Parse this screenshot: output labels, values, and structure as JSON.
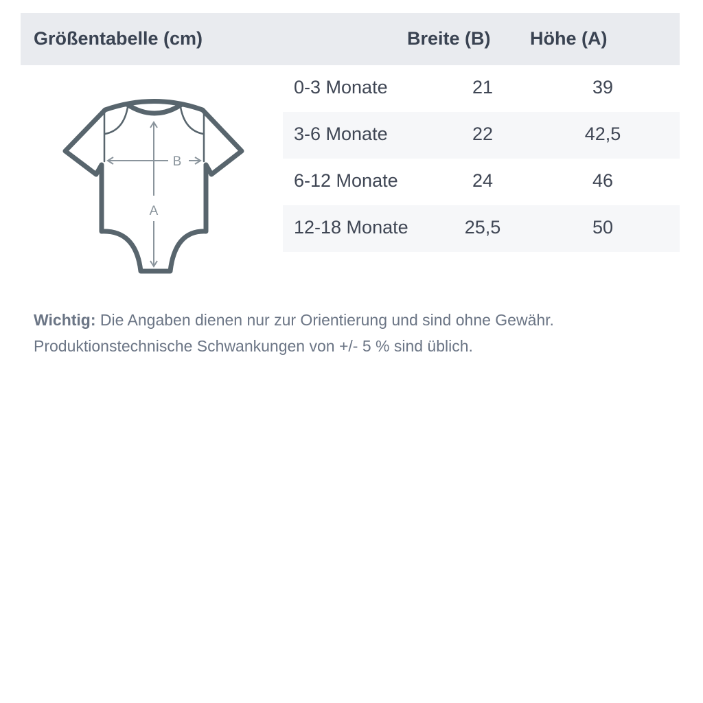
{
  "table": {
    "title": "Größentabelle (cm)",
    "col_width": "Breite (B)",
    "col_height": "Höhe (A)",
    "rows": [
      {
        "size": "0-3 Monate",
        "width": "21",
        "height": "39"
      },
      {
        "size": "3-6 Monate",
        "width": "22",
        "height": "42,5"
      },
      {
        "size": "6-12 Monate",
        "width": "24",
        "height": "46"
      },
      {
        "size": "12-18 Monate",
        "width": "25,5",
        "height": "50"
      }
    ]
  },
  "diagram": {
    "label_b": "B",
    "label_a": "A"
  },
  "note": {
    "label": "Wichtig:",
    "line1": " Die Angaben dienen nur zur Orientierung und sind ohne Gewähr.",
    "line2": "Produktionstechnische Schwankungen von +/- 5 % sind üblich."
  },
  "colors": {
    "header_bg": "#e9ebef",
    "stripe": "#f6f7f9",
    "outline": "#58656d",
    "arrows": "#8a949c"
  }
}
